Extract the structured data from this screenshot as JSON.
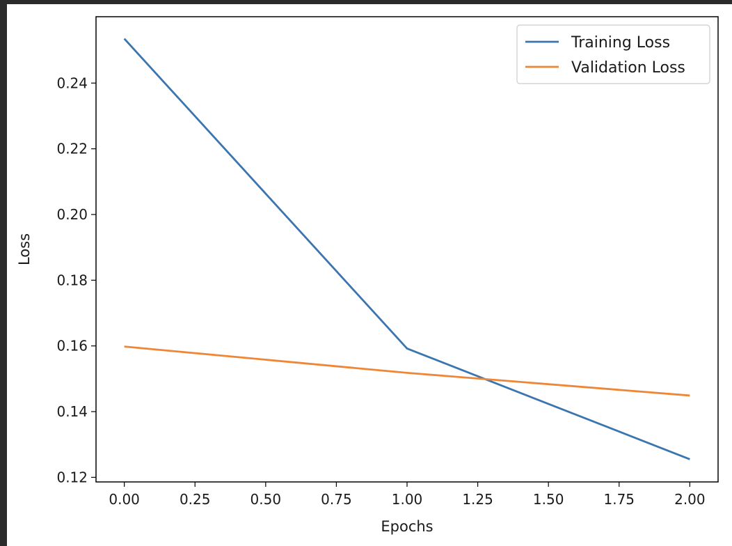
{
  "chart_data": {
    "type": "line",
    "title": "",
    "xlabel": "Epochs",
    "ylabel": "Loss",
    "xlim": [
      -0.1,
      2.1
    ],
    "ylim": [
      0.1186,
      0.2602
    ],
    "x_ticks": [
      0.0,
      0.25,
      0.5,
      0.75,
      1.0,
      1.25,
      1.5,
      1.75,
      2.0
    ],
    "x_tick_labels": [
      "0.00",
      "0.25",
      "0.50",
      "0.75",
      "1.00",
      "1.25",
      "1.50",
      "1.75",
      "2.00"
    ],
    "y_ticks": [
      0.12,
      0.14,
      0.16,
      0.18,
      0.2,
      0.22,
      0.24
    ],
    "y_tick_labels": [
      "0.12",
      "0.14",
      "0.16",
      "0.18",
      "0.20",
      "0.22",
      "0.24"
    ],
    "grid": false,
    "legend_position": "top-right",
    "x": [
      0,
      1,
      2
    ],
    "series": [
      {
        "name": "Training Loss",
        "values": [
          0.2535,
          0.1592,
          0.1255
        ],
        "color": "#3b75af"
      },
      {
        "name": "Validation Loss",
        "values": [
          0.1598,
          0.1518,
          0.1449
        ],
        "color": "#ef8636"
      }
    ]
  }
}
